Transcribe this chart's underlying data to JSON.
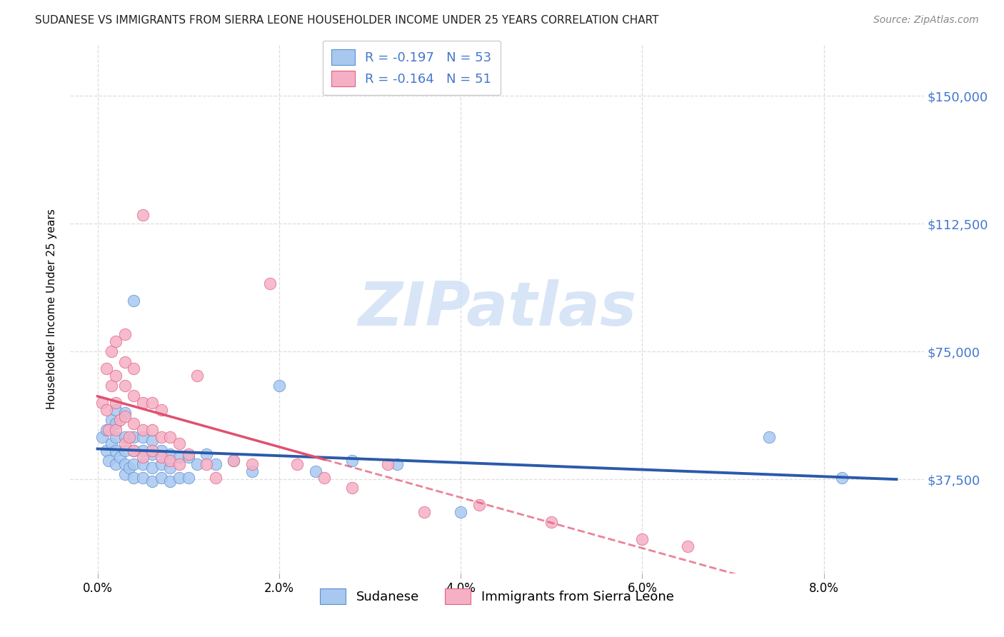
{
  "title": "SUDANESE VS IMMIGRANTS FROM SIERRA LEONE HOUSEHOLDER INCOME UNDER 25 YEARS CORRELATION CHART",
  "source": "Source: ZipAtlas.com",
  "xlabel_ticks": [
    "0.0%",
    "2.0%",
    "4.0%",
    "6.0%",
    "8.0%"
  ],
  "xlabel_tick_vals": [
    0.0,
    0.02,
    0.04,
    0.06,
    0.08
  ],
  "ylabel": "Householder Income Under 25 years",
  "ytick_labels": [
    "$37,500",
    "$75,000",
    "$112,500",
    "$150,000"
  ],
  "ytick_vals": [
    37500,
    75000,
    112500,
    150000
  ],
  "ylim": [
    10000,
    165000
  ],
  "xlim": [
    -0.003,
    0.091
  ],
  "sudanese_color": "#a8c8f0",
  "sierra_leone_color": "#f5b0c5",
  "sudanese_edge_color": "#5a8fd0",
  "sierra_leone_edge_color": "#e06080",
  "sudanese_line_color": "#2a5aaa",
  "sierra_leone_line_color": "#e05070",
  "R_sudanese": "-0.197",
  "N_sudanese": "53",
  "R_sierra_leone": "-0.164",
  "N_sierra_leone": "51",
  "watermark_text": "ZIPatlas",
  "watermark_color": "#ccddf5",
  "background_color": "#ffffff",
  "grid_color": "#dddddd",
  "legend1_label": "Sudanese",
  "legend2_label": "Immigrants from Sierra Leone",
  "right_axis_color": "#4477cc",
  "sudanese_x": [
    0.0005,
    0.001,
    0.001,
    0.0012,
    0.0015,
    0.0015,
    0.002,
    0.002,
    0.002,
    0.002,
    0.002,
    0.0025,
    0.003,
    0.003,
    0.003,
    0.003,
    0.003,
    0.0035,
    0.004,
    0.004,
    0.004,
    0.004,
    0.004,
    0.005,
    0.005,
    0.005,
    0.005,
    0.006,
    0.006,
    0.006,
    0.006,
    0.007,
    0.007,
    0.007,
    0.008,
    0.008,
    0.008,
    0.009,
    0.009,
    0.01,
    0.01,
    0.011,
    0.012,
    0.013,
    0.015,
    0.017,
    0.02,
    0.024,
    0.028,
    0.033,
    0.04,
    0.074,
    0.082
  ],
  "sudanese_y": [
    50000,
    46000,
    52000,
    43000,
    48000,
    55000,
    42000,
    46000,
    50000,
    54000,
    58000,
    44000,
    39000,
    42000,
    46000,
    50000,
    57000,
    41000,
    38000,
    42000,
    46000,
    50000,
    90000,
    38000,
    42000,
    46000,
    50000,
    37000,
    41000,
    45000,
    49000,
    38000,
    42000,
    46000,
    37000,
    41000,
    45000,
    38000,
    44000,
    38000,
    44000,
    42000,
    45000,
    42000,
    43000,
    40000,
    65000,
    40000,
    43000,
    42000,
    28000,
    50000,
    38000
  ],
  "sierra_leone_x": [
    0.0005,
    0.001,
    0.001,
    0.0012,
    0.0015,
    0.0015,
    0.002,
    0.002,
    0.002,
    0.002,
    0.0025,
    0.003,
    0.003,
    0.003,
    0.003,
    0.003,
    0.0035,
    0.004,
    0.004,
    0.004,
    0.004,
    0.005,
    0.005,
    0.005,
    0.005,
    0.006,
    0.006,
    0.006,
    0.007,
    0.007,
    0.007,
    0.008,
    0.008,
    0.009,
    0.009,
    0.01,
    0.011,
    0.012,
    0.013,
    0.015,
    0.017,
    0.019,
    0.022,
    0.025,
    0.028,
    0.032,
    0.036,
    0.042,
    0.05,
    0.06,
    0.065
  ],
  "sierra_leone_y": [
    60000,
    58000,
    70000,
    52000,
    65000,
    75000,
    52000,
    60000,
    68000,
    78000,
    55000,
    48000,
    56000,
    65000,
    72000,
    80000,
    50000,
    46000,
    54000,
    62000,
    70000,
    44000,
    52000,
    60000,
    115000,
    46000,
    52000,
    60000,
    44000,
    50000,
    58000,
    43000,
    50000,
    42000,
    48000,
    45000,
    68000,
    42000,
    38000,
    43000,
    42000,
    95000,
    42000,
    38000,
    35000,
    42000,
    28000,
    30000,
    25000,
    20000,
    18000
  ]
}
